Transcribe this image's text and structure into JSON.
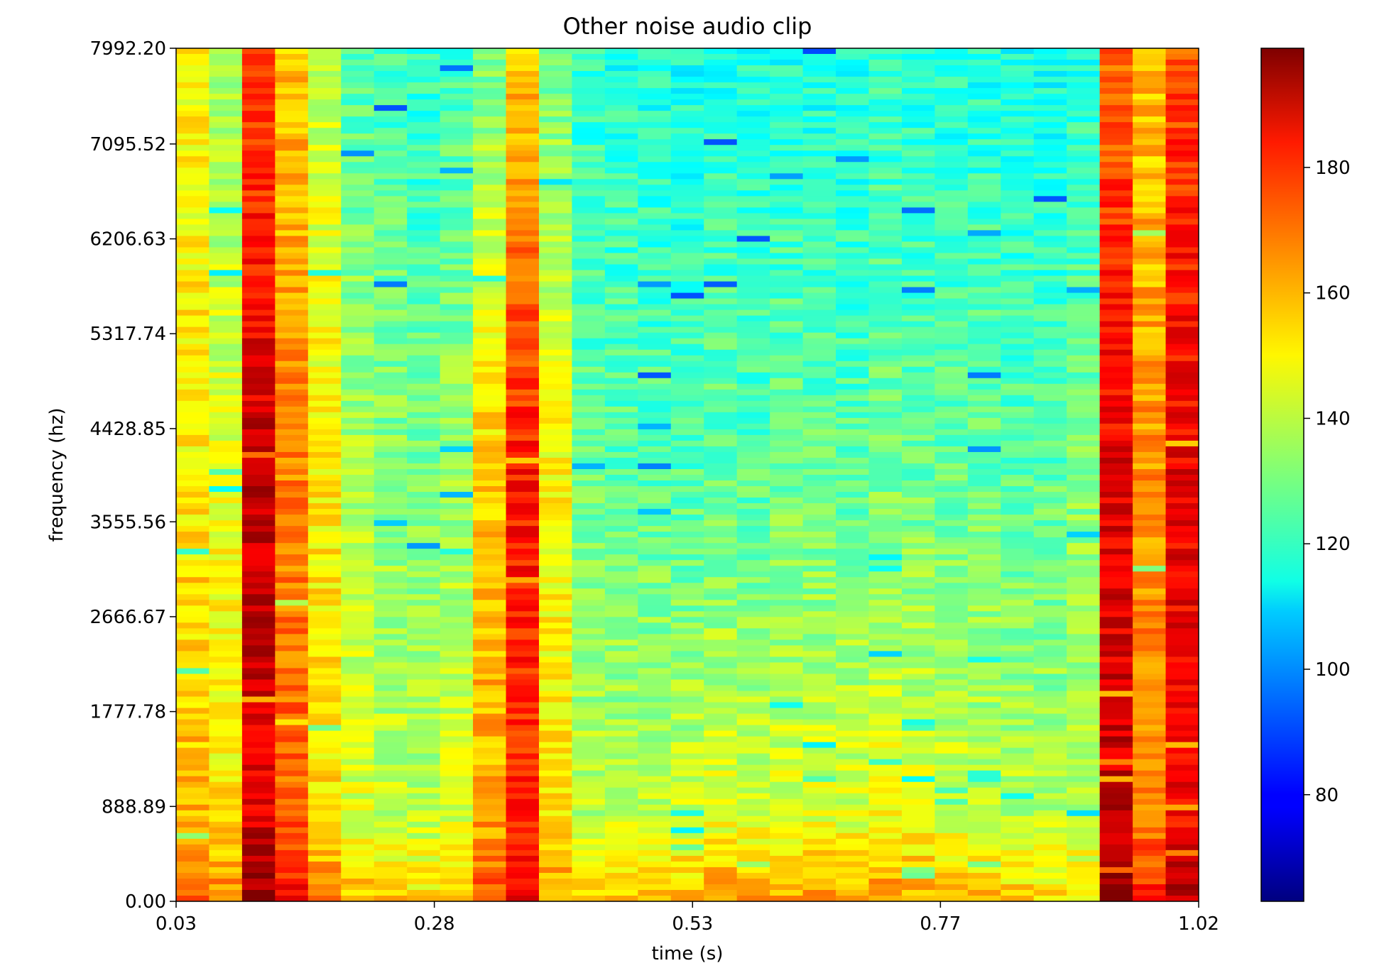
{
  "chart_data": {
    "type": "heatmap",
    "title": "Other noise audio clip",
    "xlabel": "time (s)",
    "ylabel": "frequency (hz)",
    "colormap": "jet",
    "xlim": [
      0.03,
      1.02
    ],
    "ylim": [
      0.0,
      7992.2
    ],
    "xticks": [
      "0.03",
      "0.28",
      "0.53",
      "0.77",
      "1.02"
    ],
    "xtick_values": [
      0.03,
      0.28,
      0.53,
      0.77,
      1.02
    ],
    "yticks": [
      "0.00",
      "888.89",
      "1777.78",
      "2666.67",
      "3555.56",
      "4428.85",
      "5317.74",
      "6206.63",
      "7095.52",
      "7992.20"
    ],
    "ytick_values": [
      0.0,
      888.89,
      1777.78,
      2666.67,
      3555.56,
      4428.85,
      5317.74,
      6206.63,
      7095.52,
      7992.2
    ],
    "colorbar": {
      "vmin": 63,
      "vmax": 199,
      "ticks": [
        "80",
        "100",
        "120",
        "140",
        "160",
        "180"
      ],
      "tick_values": [
        80,
        100,
        120,
        140,
        160,
        180
      ]
    },
    "grid": false,
    "time_columns": 31,
    "column_mean_intensity": [
      150,
      142,
      180,
      160,
      145,
      135,
      130,
      128,
      132,
      150,
      160,
      145,
      126,
      125,
      124,
      123,
      125,
      124,
      126,
      125,
      124,
      127,
      126,
      125,
      125,
      124,
      124,
      128,
      178,
      160,
      175
    ],
    "high_band_column_intensity": [
      148,
      135,
      170,
      155,
      140,
      125,
      122,
      120,
      124,
      130,
      155,
      130,
      120,
      118,
      117,
      116,
      118,
      117,
      118,
      117,
      116,
      120,
      118,
      117,
      118,
      116,
      116,
      118,
      168,
      155,
      172
    ],
    "mid_band_column_intensity": [
      150,
      145,
      190,
      165,
      150,
      138,
      133,
      130,
      135,
      155,
      180,
      148,
      128,
      127,
      126,
      125,
      128,
      126,
      129,
      128,
      127,
      130,
      129,
      128,
      128,
      127,
      127,
      132,
      185,
      162,
      185
    ],
    "low_band_column_intensity": [
      160,
      152,
      185,
      170,
      152,
      145,
      142,
      140,
      145,
      160,
      175,
      150,
      142,
      142,
      144,
      145,
      148,
      146,
      148,
      148,
      147,
      150,
      148,
      146,
      144,
      142,
      140,
      140,
      190,
      165,
      180
    ]
  }
}
